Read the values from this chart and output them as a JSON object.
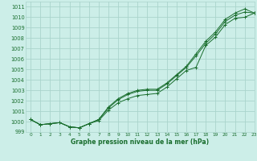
{
  "title": "Graphe pression niveau de la mer (hPa)",
  "bg_color": "#cceee8",
  "grid_color": "#aad4cc",
  "line_color": "#1a6e2e",
  "xlim": [
    -0.5,
    23
  ],
  "ylim": [
    999,
    1011.5
  ],
  "xticks": [
    0,
    1,
    2,
    3,
    4,
    5,
    6,
    7,
    8,
    9,
    10,
    11,
    12,
    13,
    14,
    15,
    16,
    17,
    18,
    19,
    20,
    21,
    22,
    23
  ],
  "yticks": [
    999,
    1000,
    1001,
    1002,
    1003,
    1004,
    1005,
    1006,
    1007,
    1008,
    1009,
    1010,
    1011
  ],
  "series1": [
    1000.2,
    999.7,
    999.8,
    999.9,
    999.5,
    999.4,
    999.8,
    1000.1,
    1001.1,
    1001.8,
    1002.2,
    1002.5,
    1002.6,
    1002.7,
    1003.3,
    1004.1,
    1004.9,
    1005.2,
    1007.3,
    1008.1,
    1009.3,
    1009.9,
    1010.0,
    1010.4
  ],
  "series2": [
    1000.2,
    999.7,
    999.8,
    999.9,
    999.5,
    999.4,
    999.8,
    1000.2,
    1001.3,
    1002.1,
    1002.6,
    1002.9,
    1003.0,
    1003.0,
    1003.6,
    1004.4,
    1005.2,
    1006.3,
    1007.5,
    1008.4,
    1009.6,
    1010.2,
    1010.5,
    1010.4
  ],
  "series3": [
    1000.2,
    999.7,
    999.8,
    999.9,
    999.5,
    999.4,
    999.8,
    1000.2,
    1001.4,
    1002.2,
    1002.7,
    1003.0,
    1003.1,
    1003.1,
    1003.7,
    1004.5,
    1005.3,
    1006.5,
    1007.7,
    1008.6,
    1009.8,
    1010.4,
    1010.8,
    1010.4
  ]
}
